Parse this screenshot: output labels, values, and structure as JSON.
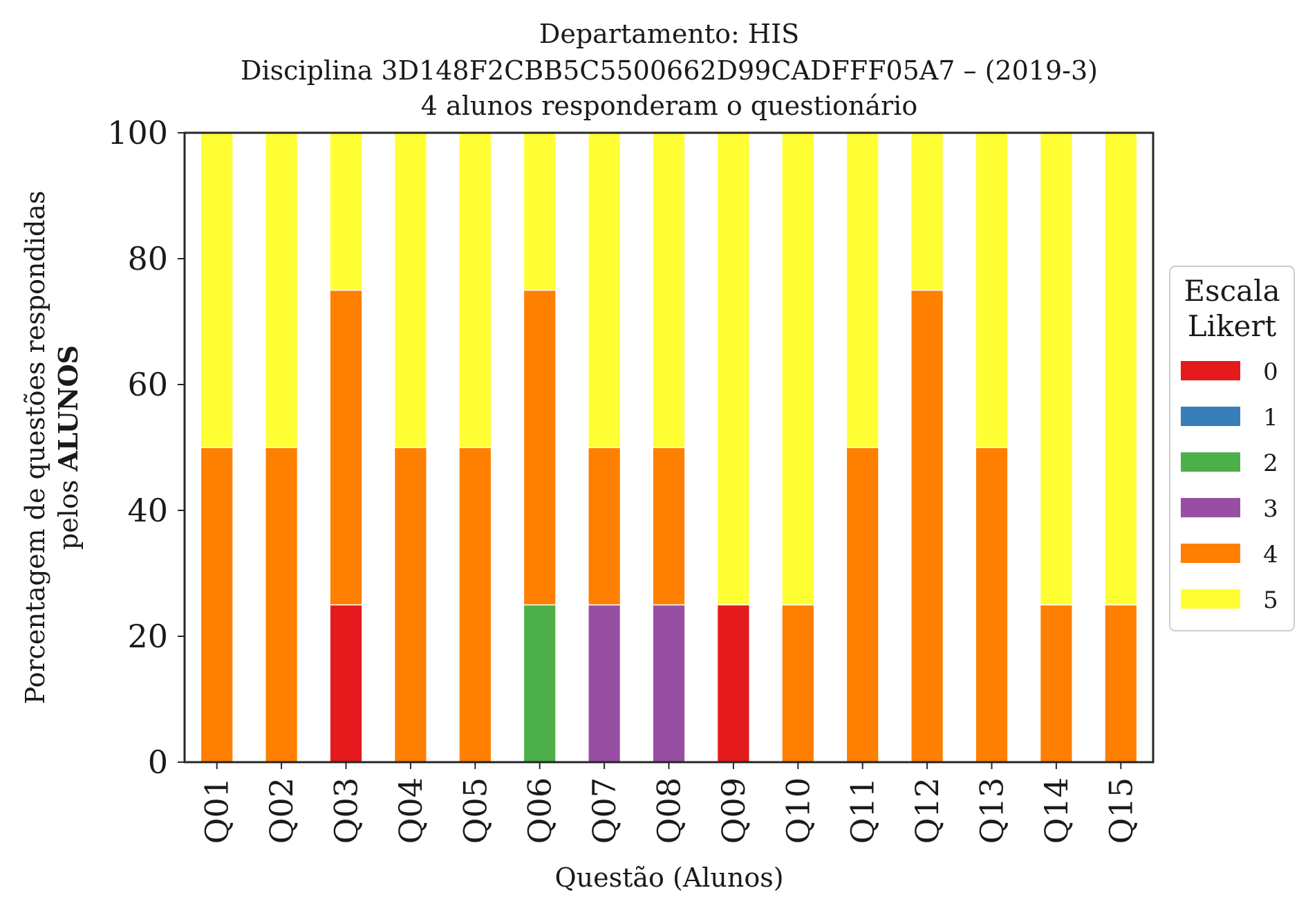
{
  "chart_data": {
    "type": "bar",
    "stacked": true,
    "title_lines": [
      "Departamento: HIS",
      "Disciplina 3D148F2CBB5C5500662D99CADFFF05A7 – (2019-3)",
      "4 alunos responderam o questionário"
    ],
    "xlabel": "Questão (Alunos)",
    "ylabel_line1": "Porcentagem de questões respondidas",
    "ylabel_line2_prefix": "pelos ",
    "ylabel_line2_bold": "ALUNOS",
    "ylim": [
      0,
      100
    ],
    "yticks": [
      "0",
      "20",
      "40",
      "60",
      "80",
      "100"
    ],
    "categories": [
      "Q01",
      "Q02",
      "Q03",
      "Q04",
      "Q05",
      "Q06",
      "Q07",
      "Q08",
      "Q09",
      "Q10",
      "Q11",
      "Q12",
      "Q13",
      "Q14",
      "Q15"
    ],
    "series": [
      {
        "name": "0",
        "color": "#e41a1c",
        "values": [
          0,
          0,
          25,
          0,
          0,
          0,
          0,
          0,
          25,
          0,
          0,
          0,
          0,
          0,
          0
        ]
      },
      {
        "name": "1",
        "color": "#377eb8",
        "values": [
          0,
          0,
          0,
          0,
          0,
          0,
          0,
          0,
          0,
          0,
          0,
          0,
          0,
          0,
          0
        ]
      },
      {
        "name": "2",
        "color": "#4daf4a",
        "values": [
          0,
          0,
          0,
          0,
          0,
          25,
          0,
          0,
          0,
          0,
          0,
          0,
          0,
          0,
          0
        ]
      },
      {
        "name": "3",
        "color": "#984ea3",
        "values": [
          0,
          0,
          0,
          0,
          0,
          0,
          25,
          25,
          0,
          0,
          0,
          0,
          0,
          0,
          0
        ]
      },
      {
        "name": "4",
        "color": "#ff7f00",
        "values": [
          50,
          50,
          50,
          50,
          50,
          50,
          25,
          25,
          0,
          25,
          50,
          75,
          50,
          25,
          25
        ]
      },
      {
        "name": "5",
        "color": "#ffff33",
        "values": [
          50,
          50,
          25,
          50,
          50,
          25,
          50,
          50,
          75,
          75,
          50,
          25,
          50,
          75,
          75
        ]
      }
    ],
    "legend": {
      "title_lines": [
        "Escala",
        "Likert"
      ],
      "placement": "right"
    },
    "grid": false
  }
}
